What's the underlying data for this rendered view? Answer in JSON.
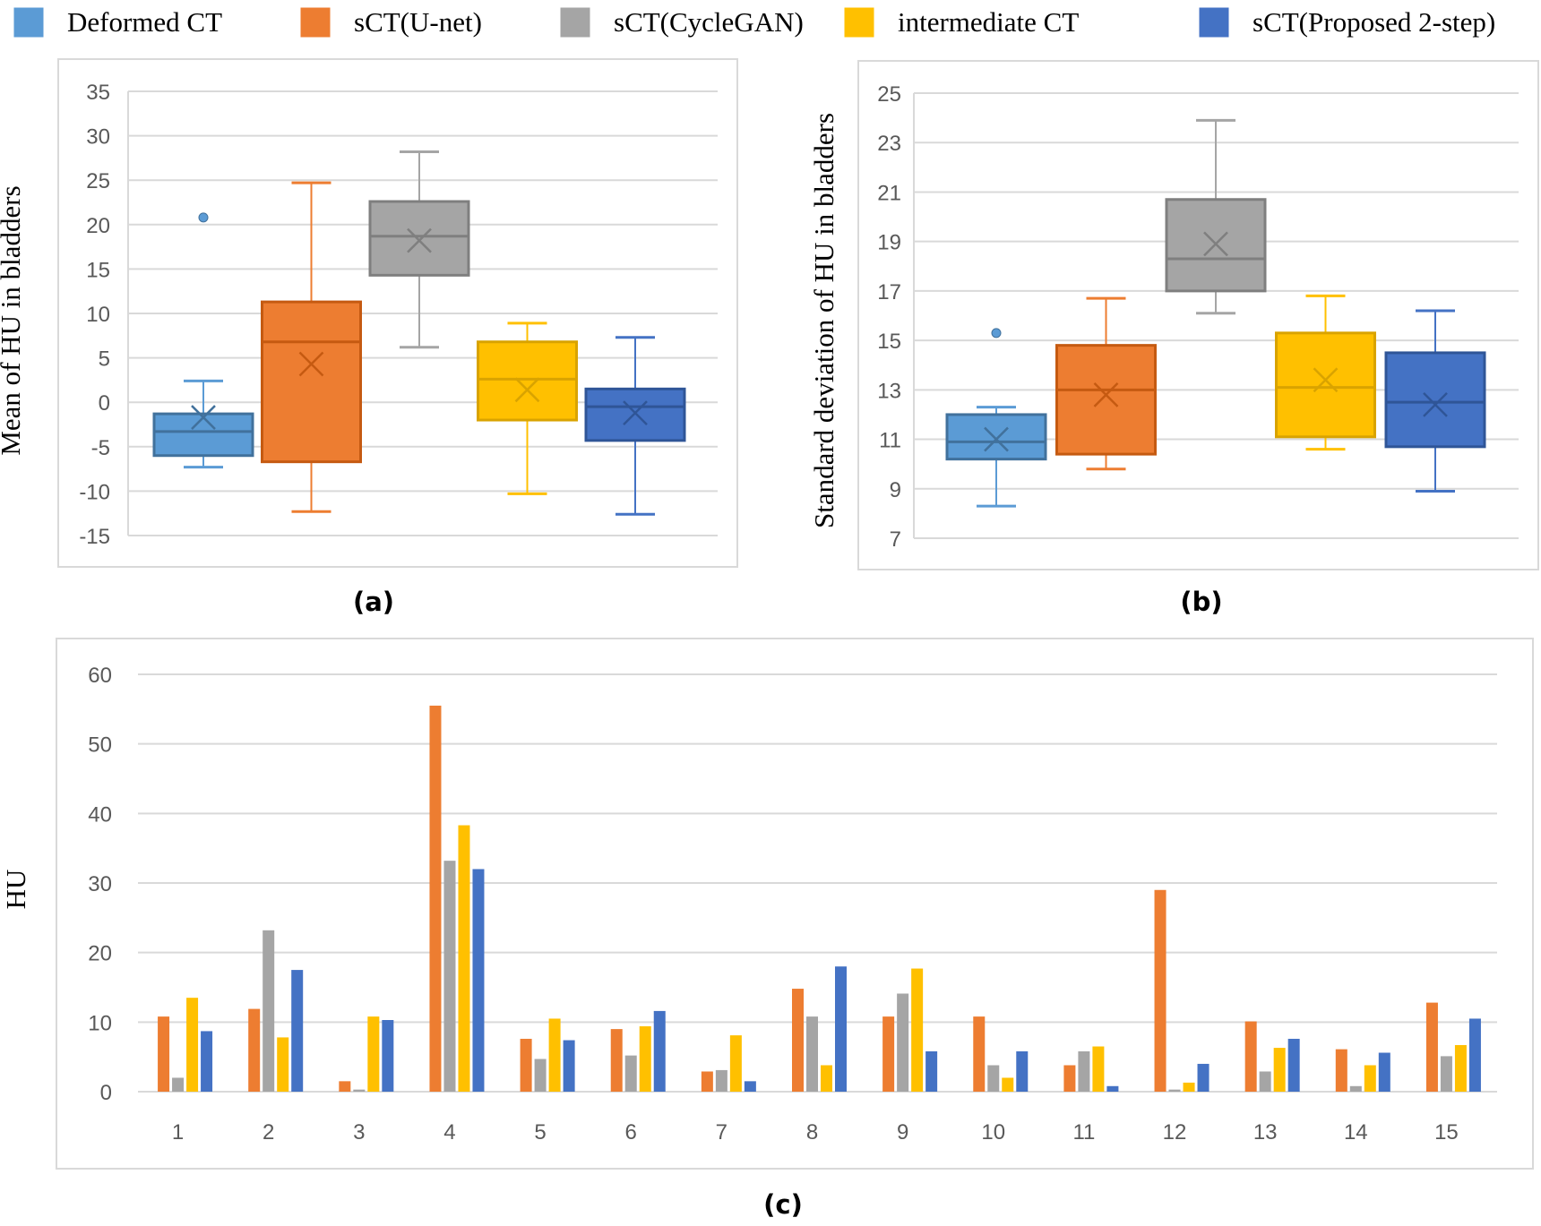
{
  "legend": [
    {
      "name": "Deformed CT",
      "color": "#5B9BD5"
    },
    {
      "name": "sCT(U-net)",
      "color": "#ED7D31"
    },
    {
      "name": "sCT(CycleGAN)",
      "color": "#A5A5A5"
    },
    {
      "name": "intermediate CT",
      "color": "#FFC000"
    },
    {
      "name": "sCT(Proposed 2-step)",
      "color": "#4472C4"
    }
  ],
  "chart_data": [
    {
      "type": "boxplot",
      "panel_label": "(a)",
      "ylabel": "Mean of HU in bladders",
      "ylim": [
        -15,
        35
      ],
      "yticks": [
        35,
        30,
        25,
        20,
        15,
        10,
        5,
        0,
        -5,
        -10,
        -15
      ],
      "grid": true,
      "series": [
        {
          "name": "Deformed CT",
          "min": -7.3,
          "q1": -6.0,
          "median": -3.3,
          "q3": -1.3,
          "max": 2.4,
          "mean": -1.7,
          "outliers": [
            20.8
          ]
        },
        {
          "name": "sCT(U-net)",
          "min": -12.3,
          "q1": -6.7,
          "median": 6.8,
          "q3": 11.3,
          "max": 24.7,
          "mean": 4.3,
          "outliers": []
        },
        {
          "name": "sCT(CycleGAN)",
          "min": 6.2,
          "q1": 14.3,
          "median": 18.7,
          "q3": 22.6,
          "max": 28.2,
          "mean": 18.2,
          "outliers": []
        },
        {
          "name": "intermediate CT",
          "min": -10.3,
          "q1": -2.0,
          "median": 2.6,
          "q3": 6.8,
          "max": 8.9,
          "mean": 1.4,
          "outliers": []
        },
        {
          "name": "sCT(Proposed 2-step)",
          "min": -12.6,
          "q1": -4.3,
          "median": -0.5,
          "q3": 1.5,
          "max": 7.3,
          "mean": -1.2,
          "outliers": []
        }
      ]
    },
    {
      "type": "boxplot",
      "panel_label": "(b)",
      "ylabel": "Standard deviation of HU in bladders",
      "ylim": [
        7,
        25
      ],
      "yticks": [
        25,
        23,
        21,
        19,
        17,
        15,
        13,
        11,
        9,
        7
      ],
      "grid": true,
      "series": [
        {
          "name": "Deformed CT",
          "min": 8.3,
          "q1": 10.2,
          "median": 10.9,
          "q3": 12.0,
          "max": 12.3,
          "mean": 11.0,
          "outliers": [
            15.3
          ]
        },
        {
          "name": "sCT(U-net)",
          "min": 9.8,
          "q1": 10.4,
          "median": 13.0,
          "q3": 14.8,
          "max": 16.7,
          "mean": 12.8,
          "outliers": []
        },
        {
          "name": "sCT(CycleGAN)",
          "min": 16.1,
          "q1": 17.0,
          "median": 18.3,
          "q3": 20.7,
          "max": 23.9,
          "mean": 18.9,
          "outliers": []
        },
        {
          "name": "intermediate CT",
          "min": 10.6,
          "q1": 11.1,
          "median": 13.1,
          "q3": 15.3,
          "max": 16.8,
          "mean": 13.4,
          "outliers": []
        },
        {
          "name": "sCT(Proposed 2-step)",
          "min": 8.9,
          "q1": 10.7,
          "median": 12.5,
          "q3": 14.5,
          "max": 16.2,
          "mean": 12.4,
          "outliers": []
        }
      ]
    },
    {
      "type": "bar",
      "panel_label": "(c)",
      "ylabel": "HU",
      "ylim": [
        0,
        60
      ],
      "yticks": [
        60,
        50,
        40,
        30,
        20,
        10,
        0
      ],
      "grid": true,
      "categories": [
        "1",
        "2",
        "3",
        "4",
        "5",
        "6",
        "7",
        "8",
        "9",
        "10",
        "11",
        "12",
        "13",
        "14",
        "15"
      ],
      "series": [
        {
          "name": "sCT(U-net)",
          "values": [
            10.8,
            11.9,
            1.5,
            55.5,
            7.6,
            9.0,
            2.9,
            14.8,
            10.8,
            10.8,
            3.8,
            29.0,
            10.1,
            6.1,
            12.8
          ]
        },
        {
          "name": "sCT(CycleGAN)",
          "values": [
            2.0,
            23.2,
            0.3,
            33.2,
            4.7,
            5.2,
            3.1,
            10.8,
            14.1,
            3.8,
            5.8,
            0.3,
            2.9,
            0.8,
            5.1
          ]
        },
        {
          "name": "intermediate CT",
          "values": [
            13.5,
            7.8,
            10.8,
            38.3,
            10.5,
            9.4,
            8.1,
            3.8,
            17.7,
            2.0,
            6.5,
            1.3,
            6.3,
            3.8,
            6.7
          ]
        },
        {
          "name": "sCT(Proposed 2-step)",
          "values": [
            8.7,
            17.5,
            10.3,
            32.0,
            7.4,
            11.6,
            1.5,
            18.0,
            5.8,
            5.8,
            0.8,
            4.0,
            7.6,
            5.6,
            10.5
          ]
        }
      ]
    }
  ]
}
